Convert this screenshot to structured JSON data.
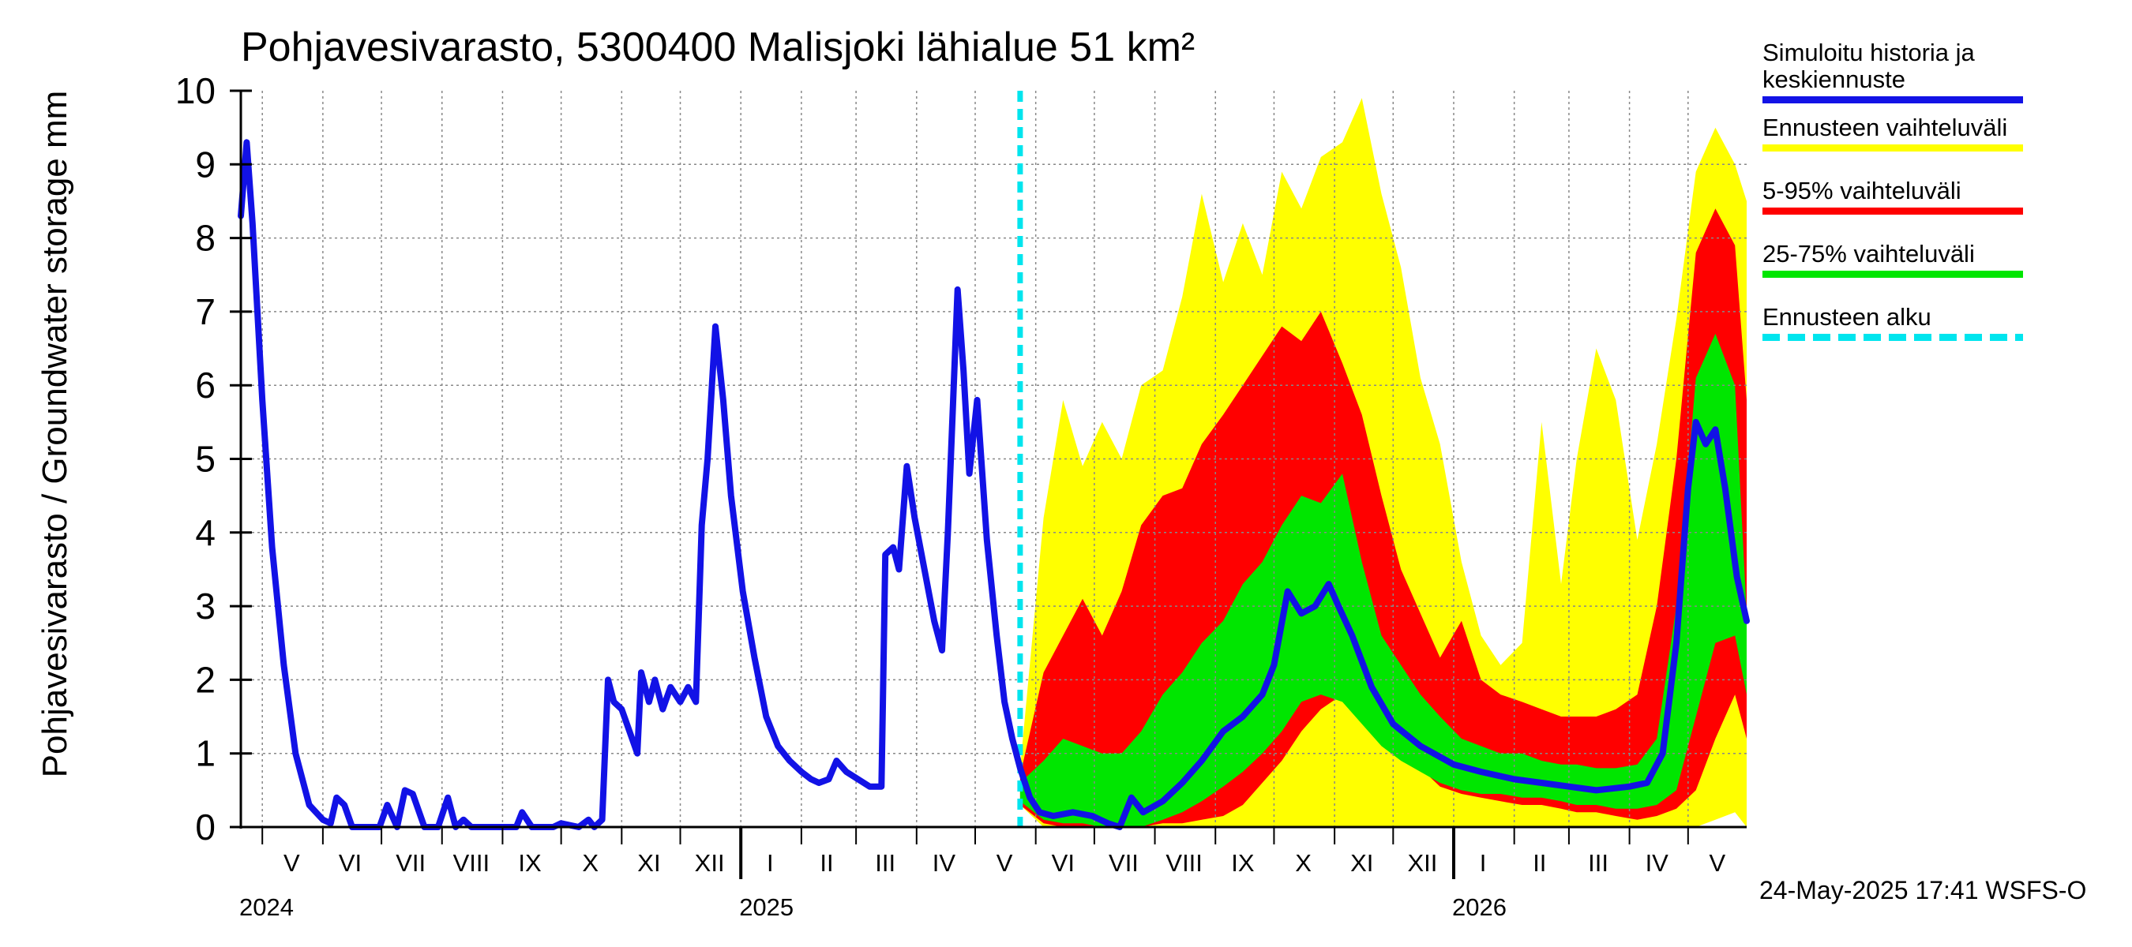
{
  "title": "Pohjavesivarasto, 5300400 Malisjoki lähialue 51 km²",
  "ylabel": "Pohjavesivarasto / Groundwater storage   mm",
  "footer": "24-May-2025 17:41 WSFS-O",
  "colors": {
    "history": "#1212e6",
    "range": "#ffff00",
    "p5_95": "#ff0000",
    "p25_75": "#00e600",
    "forecast_start": "#00e5ee"
  },
  "legend": [
    {
      "label": "Simuloitu historia ja keskiennuste",
      "color": "#1212e6",
      "style": "solid"
    },
    {
      "label": "Ennusteen vaihteluväli",
      "color": "#ffff00",
      "style": "solid"
    },
    {
      "label": "5-95% vaihteluväli",
      "color": "#ff0000",
      "style": "solid"
    },
    {
      "label": "25-75% vaihteluväli",
      "color": "#00e600",
      "style": "solid"
    },
    {
      "label": "Ennusteen alku",
      "color": "#00e5ee",
      "style": "dashed"
    }
  ],
  "chart_data": {
    "type": "area",
    "title": "Pohjavesivarasto, 5300400 Malisjoki lähialue 51 km²",
    "ylabel": "Pohjavesivarasto / Groundwater storage   mm",
    "xlabel": "",
    "ylim": [
      0,
      10
    ],
    "yticks": [
      0,
      1,
      2,
      3,
      4,
      5,
      6,
      7,
      8,
      9,
      10
    ],
    "xlim": [
      "2024-04-20",
      "2026-05-31"
    ],
    "grid": true,
    "legend_position": "right",
    "month_labels": [
      {
        "label": "V",
        "date": "2024-05-16"
      },
      {
        "label": "VI",
        "date": "2024-06-15"
      },
      {
        "label": "VII",
        "date": "2024-07-16"
      },
      {
        "label": "VIII",
        "date": "2024-08-16"
      },
      {
        "label": "IX",
        "date": "2024-09-15"
      },
      {
        "label": "X",
        "date": "2024-10-16"
      },
      {
        "label": "XI",
        "date": "2024-11-15"
      },
      {
        "label": "XII",
        "date": "2024-12-16"
      },
      {
        "label": "I",
        "date": "2025-01-16"
      },
      {
        "label": "II",
        "date": "2025-02-14"
      },
      {
        "label": "III",
        "date": "2025-03-16"
      },
      {
        "label": "IV",
        "date": "2025-04-15"
      },
      {
        "label": "V",
        "date": "2025-05-16"
      },
      {
        "label": "VI",
        "date": "2025-06-15"
      },
      {
        "label": "VII",
        "date": "2025-07-16"
      },
      {
        "label": "VIII",
        "date": "2025-08-16"
      },
      {
        "label": "IX",
        "date": "2025-09-15"
      },
      {
        "label": "X",
        "date": "2025-10-16"
      },
      {
        "label": "XI",
        "date": "2025-11-15"
      },
      {
        "label": "XII",
        "date": "2025-12-16"
      },
      {
        "label": "I",
        "date": "2026-01-16"
      },
      {
        "label": "II",
        "date": "2026-02-14"
      },
      {
        "label": "III",
        "date": "2026-03-16"
      },
      {
        "label": "IV",
        "date": "2026-04-15"
      },
      {
        "label": "V",
        "date": "2026-05-16"
      }
    ],
    "year_labels": [
      {
        "label": "2024",
        "date": "2024-04-20"
      },
      {
        "label": "2025",
        "date": "2025-01-01"
      },
      {
        "label": "2026",
        "date": "2026-01-01"
      }
    ],
    "forecast_start": "2025-05-24",
    "series": [
      {
        "name": "Simuloitu historia ja keskiennuste",
        "role": "history_and_median",
        "points": [
          [
            "2024-04-20",
            8.3
          ],
          [
            "2024-04-23",
            9.3
          ],
          [
            "2024-04-26",
            8.2
          ],
          [
            "2024-05-01",
            5.8
          ],
          [
            "2024-05-06",
            3.8
          ],
          [
            "2024-05-12",
            2.2
          ],
          [
            "2024-05-18",
            1.0
          ],
          [
            "2024-05-25",
            0.3
          ],
          [
            "2024-06-01",
            0.1
          ],
          [
            "2024-06-05",
            0.05
          ],
          [
            "2024-06-08",
            0.4
          ],
          [
            "2024-06-12",
            0.3
          ],
          [
            "2024-06-16",
            0.0
          ],
          [
            "2024-06-30",
            0.0
          ],
          [
            "2024-07-04",
            0.3
          ],
          [
            "2024-07-09",
            0.0
          ],
          [
            "2024-07-13",
            0.5
          ],
          [
            "2024-07-17",
            0.45
          ],
          [
            "2024-07-23",
            0.0
          ],
          [
            "2024-07-30",
            0.0
          ],
          [
            "2024-08-04",
            0.4
          ],
          [
            "2024-08-08",
            0.0
          ],
          [
            "2024-08-12",
            0.1
          ],
          [
            "2024-08-16",
            0.0
          ],
          [
            "2024-09-08",
            0.0
          ],
          [
            "2024-09-11",
            0.2
          ],
          [
            "2024-09-16",
            0.0
          ],
          [
            "2024-09-27",
            0.0
          ],
          [
            "2024-10-01",
            0.05
          ],
          [
            "2024-10-10",
            0.0
          ],
          [
            "2024-10-15",
            0.1
          ],
          [
            "2024-10-18",
            0.0
          ],
          [
            "2024-10-22",
            0.1
          ],
          [
            "2024-10-25",
            2.0
          ],
          [
            "2024-10-28",
            1.7
          ],
          [
            "2024-11-01",
            1.6
          ],
          [
            "2024-11-05",
            1.3
          ],
          [
            "2024-11-09",
            1.0
          ],
          [
            "2024-11-11",
            2.1
          ],
          [
            "2024-11-15",
            1.7
          ],
          [
            "2024-11-18",
            2.0
          ],
          [
            "2024-11-22",
            1.6
          ],
          [
            "2024-11-26",
            1.9
          ],
          [
            "2024-12-01",
            1.7
          ],
          [
            "2024-12-05",
            1.9
          ],
          [
            "2024-12-09",
            1.7
          ],
          [
            "2024-12-12",
            4.1
          ],
          [
            "2024-12-15",
            5.0
          ],
          [
            "2024-12-19",
            6.8
          ],
          [
            "2024-12-23",
            5.8
          ],
          [
            "2024-12-27",
            4.5
          ],
          [
            "2025-01-02",
            3.2
          ],
          [
            "2025-01-08",
            2.3
          ],
          [
            "2025-01-14",
            1.5
          ],
          [
            "2025-01-20",
            1.1
          ],
          [
            "2025-01-26",
            0.9
          ],
          [
            "2025-02-01",
            0.75
          ],
          [
            "2025-02-06",
            0.65
          ],
          [
            "2025-02-10",
            0.6
          ],
          [
            "2025-02-15",
            0.65
          ],
          [
            "2025-02-19",
            0.9
          ],
          [
            "2025-02-24",
            0.75
          ],
          [
            "2025-03-02",
            0.65
          ],
          [
            "2025-03-08",
            0.55
          ],
          [
            "2025-03-14",
            0.55
          ],
          [
            "2025-03-16",
            3.7
          ],
          [
            "2025-03-20",
            3.8
          ],
          [
            "2025-03-23",
            3.5
          ],
          [
            "2025-03-27",
            4.9
          ],
          [
            "2025-03-31",
            4.2
          ],
          [
            "2025-04-05",
            3.5
          ],
          [
            "2025-04-10",
            2.8
          ],
          [
            "2025-04-14",
            2.4
          ],
          [
            "2025-04-17",
            4.0
          ],
          [
            "2025-04-22",
            7.3
          ],
          [
            "2025-04-25",
            6.2
          ],
          [
            "2025-04-28",
            4.8
          ],
          [
            "2025-05-02",
            5.8
          ],
          [
            "2025-05-07",
            3.9
          ],
          [
            "2025-05-12",
            2.6
          ],
          [
            "2025-05-16",
            1.7
          ],
          [
            "2025-05-20",
            1.2
          ],
          [
            "2025-05-24",
            0.8
          ],
          [
            "2025-05-29",
            0.4
          ],
          [
            "2025-06-03",
            0.2
          ],
          [
            "2025-06-10",
            0.15
          ],
          [
            "2025-06-20",
            0.2
          ],
          [
            "2025-06-30",
            0.15
          ],
          [
            "2025-07-08",
            0.05
          ],
          [
            "2025-07-14",
            0.0
          ],
          [
            "2025-07-20",
            0.4
          ],
          [
            "2025-07-26",
            0.2
          ],
          [
            "2025-08-05",
            0.35
          ],
          [
            "2025-08-15",
            0.6
          ],
          [
            "2025-08-25",
            0.9
          ],
          [
            "2025-09-05",
            1.3
          ],
          [
            "2025-09-15",
            1.5
          ],
          [
            "2025-09-25",
            1.8
          ],
          [
            "2025-10-01",
            2.2
          ],
          [
            "2025-10-08",
            3.2
          ],
          [
            "2025-10-15",
            2.9
          ],
          [
            "2025-10-22",
            3.0
          ],
          [
            "2025-10-29",
            3.3
          ],
          [
            "2025-11-03",
            3.0
          ],
          [
            "2025-11-10",
            2.6
          ],
          [
            "2025-11-20",
            1.9
          ],
          [
            "2025-12-01",
            1.4
          ],
          [
            "2025-12-15",
            1.1
          ],
          [
            "2026-01-01",
            0.85
          ],
          [
            "2026-01-15",
            0.75
          ],
          [
            "2026-02-01",
            0.65
          ],
          [
            "2026-02-15",
            0.6
          ],
          [
            "2026-03-01",
            0.55
          ],
          [
            "2026-03-15",
            0.5
          ],
          [
            "2026-04-01",
            0.55
          ],
          [
            "2026-04-10",
            0.6
          ],
          [
            "2026-04-18",
            1.0
          ],
          [
            "2026-04-25",
            2.5
          ],
          [
            "2026-05-01",
            4.6
          ],
          [
            "2026-05-05",
            5.5
          ],
          [
            "2026-05-10",
            5.2
          ],
          [
            "2026-05-15",
            5.4
          ],
          [
            "2026-05-20",
            4.6
          ],
          [
            "2026-05-26",
            3.4
          ],
          [
            "2026-05-31",
            2.8
          ]
        ]
      },
      {
        "name": "Ennusteen vaihteluväli",
        "role": "band_min_max",
        "x": [
          "2025-05-24",
          "2025-06-05",
          "2025-06-15",
          "2025-06-25",
          "2025-07-05",
          "2025-07-15",
          "2025-07-25",
          "2025-08-05",
          "2025-08-15",
          "2025-08-25",
          "2025-09-05",
          "2025-09-15",
          "2025-09-25",
          "2025-10-05",
          "2025-10-15",
          "2025-10-25",
          "2025-11-05",
          "2025-11-15",
          "2025-11-25",
          "2025-12-05",
          "2025-12-15",
          "2025-12-25",
          "2026-01-05",
          "2026-01-15",
          "2026-01-25",
          "2026-02-05",
          "2026-02-15",
          "2026-02-25",
          "2026-03-05",
          "2026-03-15",
          "2026-03-25",
          "2026-04-05",
          "2026-04-15",
          "2026-04-25",
          "2026-05-05",
          "2026-05-15",
          "2026-05-25",
          "2026-05-31"
        ],
        "lower": [
          0.3,
          0.0,
          0.0,
          0.0,
          0.0,
          0.0,
          0.0,
          0.0,
          0.0,
          0.0,
          0.0,
          0.0,
          0.0,
          0.0,
          0.0,
          0.0,
          0.0,
          0.0,
          0.0,
          0.0,
          0.0,
          0.0,
          0.0,
          0.0,
          0.0,
          0.0,
          0.0,
          0.0,
          0.0,
          0.0,
          0.0,
          0.0,
          0.0,
          0.0,
          0.0,
          0.1,
          0.2,
          0.0
        ],
        "upper": [
          0.8,
          4.2,
          5.8,
          4.9,
          5.5,
          5.0,
          6.0,
          6.2,
          7.2,
          8.6,
          7.4,
          8.2,
          7.5,
          8.9,
          8.4,
          9.1,
          9.3,
          9.9,
          8.6,
          7.6,
          6.1,
          5.2,
          3.6,
          2.6,
          2.2,
          2.5,
          5.5,
          3.3,
          5.0,
          6.5,
          5.8,
          3.9,
          5.2,
          6.9,
          8.9,
          9.5,
          9.0,
          8.5
        ]
      },
      {
        "name": "5-95% vaihteluväli",
        "role": "band_5_95",
        "x": [
          "2025-05-24",
          "2025-06-05",
          "2025-06-15",
          "2025-06-25",
          "2025-07-05",
          "2025-07-15",
          "2025-07-25",
          "2025-08-05",
          "2025-08-15",
          "2025-08-25",
          "2025-09-05",
          "2025-09-15",
          "2025-09-25",
          "2025-10-05",
          "2025-10-15",
          "2025-10-25",
          "2025-11-05",
          "2025-11-15",
          "2025-11-25",
          "2025-12-05",
          "2025-12-15",
          "2025-12-25",
          "2026-01-05",
          "2026-01-15",
          "2026-01-25",
          "2026-02-05",
          "2026-02-15",
          "2026-02-25",
          "2026-03-05",
          "2026-03-15",
          "2026-03-25",
          "2026-04-05",
          "2026-04-15",
          "2026-04-25",
          "2026-05-05",
          "2026-05-15",
          "2026-05-25",
          "2026-05-31"
        ],
        "lower": [
          0.3,
          0.05,
          0.0,
          0.0,
          0.0,
          0.0,
          0.0,
          0.05,
          0.05,
          0.1,
          0.15,
          0.3,
          0.6,
          0.9,
          1.3,
          1.6,
          1.8,
          1.5,
          1.2,
          1.0,
          0.8,
          0.55,
          0.45,
          0.4,
          0.35,
          0.3,
          0.3,
          0.25,
          0.2,
          0.2,
          0.15,
          0.1,
          0.15,
          0.25,
          0.5,
          1.2,
          1.8,
          1.2
        ],
        "upper": [
          0.7,
          2.1,
          2.6,
          3.1,
          2.6,
          3.2,
          4.1,
          4.5,
          4.6,
          5.2,
          5.6,
          6.0,
          6.4,
          6.8,
          6.6,
          7.0,
          6.3,
          5.6,
          4.5,
          3.5,
          2.9,
          2.3,
          2.8,
          2.0,
          1.8,
          1.7,
          1.6,
          1.5,
          1.5,
          1.5,
          1.6,
          1.8,
          3.0,
          5.0,
          7.8,
          8.4,
          7.9,
          5.8
        ]
      },
      {
        "name": "25-75% vaihteluväli",
        "role": "band_25_75",
        "x": [
          "2025-05-24",
          "2025-06-05",
          "2025-06-15",
          "2025-06-25",
          "2025-07-05",
          "2025-07-15",
          "2025-07-25",
          "2025-08-05",
          "2025-08-15",
          "2025-08-25",
          "2025-09-05",
          "2025-09-15",
          "2025-09-25",
          "2025-10-05",
          "2025-10-15",
          "2025-10-25",
          "2025-11-05",
          "2025-11-15",
          "2025-11-25",
          "2025-12-05",
          "2025-12-15",
          "2025-12-25",
          "2026-01-05",
          "2026-01-15",
          "2026-01-25",
          "2026-02-05",
          "2026-02-15",
          "2026-02-25",
          "2026-03-05",
          "2026-03-15",
          "2026-03-25",
          "2026-04-05",
          "2026-04-15",
          "2026-04-25",
          "2026-05-05",
          "2026-05-15",
          "2026-05-25",
          "2026-05-31"
        ],
        "lower": [
          0.35,
          0.1,
          0.05,
          0.05,
          0.0,
          0.0,
          0.0,
          0.1,
          0.2,
          0.35,
          0.55,
          0.75,
          1.0,
          1.3,
          1.7,
          1.8,
          1.7,
          1.4,
          1.1,
          0.9,
          0.75,
          0.6,
          0.5,
          0.45,
          0.45,
          0.4,
          0.4,
          0.35,
          0.3,
          0.3,
          0.25,
          0.25,
          0.3,
          0.5,
          1.5,
          2.5,
          2.6,
          1.8
        ],
        "upper": [
          0.6,
          0.9,
          1.2,
          1.1,
          1.0,
          1.0,
          1.3,
          1.8,
          2.1,
          2.5,
          2.8,
          3.3,
          3.6,
          4.1,
          4.5,
          4.4,
          4.8,
          3.6,
          2.6,
          2.2,
          1.8,
          1.5,
          1.2,
          1.1,
          1.0,
          1.0,
          0.9,
          0.85,
          0.85,
          0.8,
          0.8,
          0.85,
          1.2,
          3.0,
          6.1,
          6.7,
          6.0,
          2.9
        ]
      }
    ]
  }
}
